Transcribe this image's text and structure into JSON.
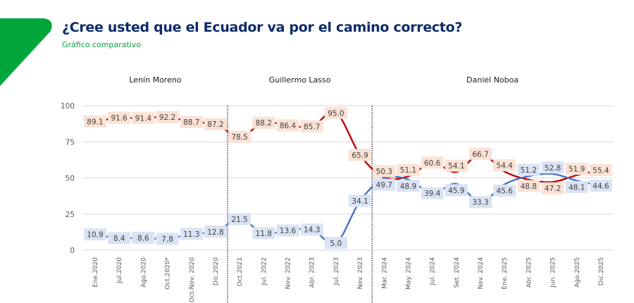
{
  "header": {
    "title": "¿Cree usted que el Ecuador va por el camino correcto?",
    "subtitle": "Gráfico comparativo",
    "accent_color": "#00a63c",
    "title_color": "#0d2b6b"
  },
  "chart_data": {
    "type": "line",
    "title": "¿Cree usted que el Ecuador va por el camino correcto?",
    "subtitle": "Gráfico comparativo",
    "xlabel": "",
    "ylabel": "",
    "ylim": [
      0,
      100
    ],
    "yticks": [
      0,
      25,
      50,
      75,
      100
    ],
    "grid": true,
    "categories": [
      "Ene.2020",
      "Jul.2020",
      "Ago.2020",
      "Oct.2020*",
      "Oct-Nov. 2020",
      "Dic.2020",
      "Oct.2021",
      "Jul. 2022",
      "Nov. 2022",
      "Abr. 2023",
      "Jul. 2023",
      "Nov. 2023",
      "Mar. 2024",
      "May. 2024",
      "Jul. 2024",
      "Set. 2024",
      "Nov. 2024",
      "Ene. 2025",
      "Abr. 2025",
      "Jun. 2025",
      "Ago.2025",
      "Dic.2025"
    ],
    "periods": [
      {
        "label": "Lenín Moreno",
        "from": 0,
        "to": 5
      },
      {
        "label": "Guillermo Lasso",
        "from": 6,
        "to": 11
      },
      {
        "label": "Daniel Noboa",
        "from": 12,
        "to": 21
      }
    ],
    "series": [
      {
        "color": "#c00000",
        "label_bg": "#fbe2d5",
        "values": [
          89.1,
          91.6,
          91.4,
          92.2,
          88.7,
          87.2,
          78.5,
          88.2,
          86.4,
          85.7,
          95.0,
          65.9,
          50.3,
          51.1,
          60.6,
          54.1,
          66.7,
          54.4,
          48.8,
          47.2,
          51.9,
          55.4
        ]
      },
      {
        "color": "#4472c4",
        "label_bg": "#dae3f3",
        "values": [
          10.9,
          8.4,
          8.6,
          7.8,
          11.3,
          12.8,
          21.5,
          11.8,
          13.6,
          14.3,
          5.0,
          34.1,
          49.7,
          48.9,
          39.4,
          45.9,
          33.3,
          45.6,
          51.2,
          52.8,
          48.1,
          44.6
        ]
      }
    ]
  }
}
